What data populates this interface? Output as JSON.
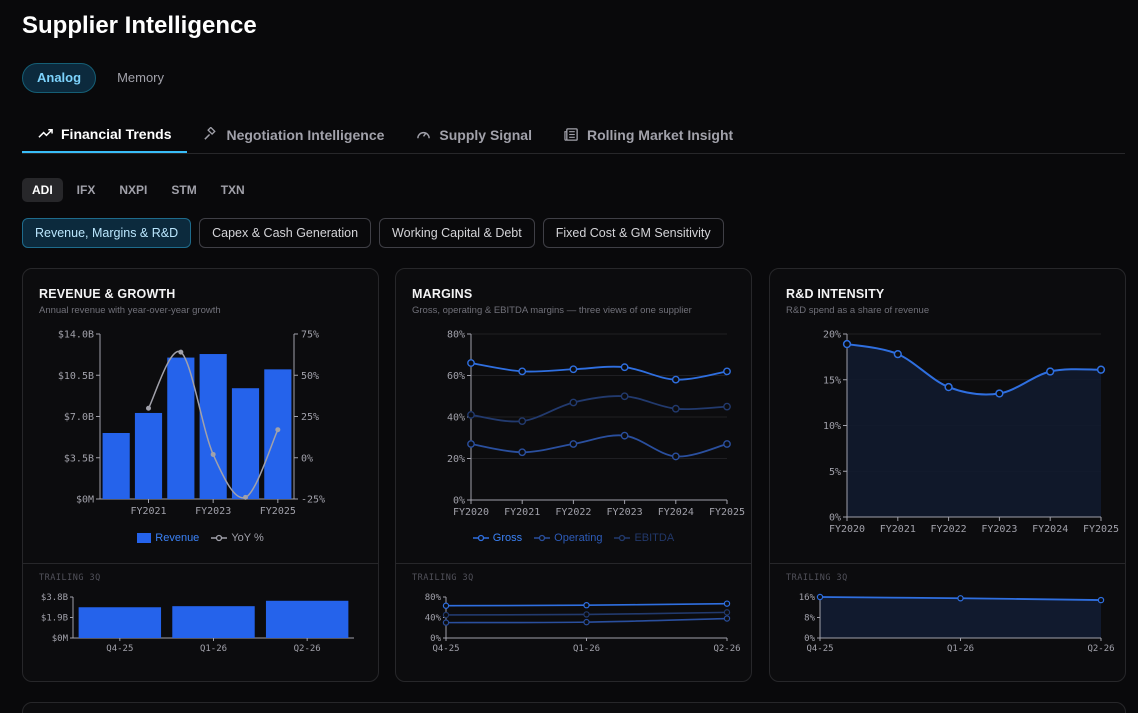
{
  "page": {
    "title": "Supplier Intelligence"
  },
  "modes": [
    {
      "label": "Analog",
      "active": true
    },
    {
      "label": "Memory",
      "active": false
    }
  ],
  "tabs": [
    {
      "label": "Financial Trends",
      "icon": "trending-up-icon",
      "active": true
    },
    {
      "label": "Negotiation Intelligence",
      "icon": "gavel-icon",
      "active": false
    },
    {
      "label": "Supply Signal",
      "icon": "gauge-icon",
      "active": false
    },
    {
      "label": "Rolling Market Insight",
      "icon": "newspaper-icon",
      "active": false
    }
  ],
  "tickers": [
    {
      "label": "ADI",
      "active": true
    },
    {
      "label": "IFX",
      "active": false
    },
    {
      "label": "NXPI",
      "active": false
    },
    {
      "label": "STM",
      "active": false
    },
    {
      "label": "TXN",
      "active": false
    }
  ],
  "views": [
    {
      "label": "Revenue, Margins & R&D",
      "active": true
    },
    {
      "label": "Capex & Cash Generation",
      "active": false
    },
    {
      "label": "Working Capital & Debt",
      "active": false
    },
    {
      "label": "Fixed Cost & GM Sensitivity",
      "active": false
    }
  ],
  "colors": {
    "accent": "#38bdf8",
    "blue": "#2563eb",
    "line": "#2f6fe0",
    "grey": "#a1a1aa"
  },
  "cards": {
    "revenue": {
      "title": "REVENUE & GROWTH",
      "subtitle": "Annual revenue with year-over-year growth",
      "trailing_label": "TRAILING 3Q",
      "legend_revenue": "Revenue",
      "legend_yoy": "YoY %"
    },
    "margins": {
      "title": "MARGINS",
      "subtitle": "Gross, operating & EBITDA margins — three views of one supplier",
      "trailing_label": "TRAILING 3Q",
      "legend_gross": "Gross",
      "legend_operating": "Operating",
      "legend_ebitda": "EBITDA"
    },
    "rd": {
      "title": "R&D INTENSITY",
      "subtitle": "R&D spend as a share of revenue",
      "trailing_label": "TRAILING 3Q"
    }
  },
  "chart_data": [
    {
      "type": "bar",
      "title": "REVENUE & GROWTH",
      "categories": [
        "FY2020",
        "FY2021",
        "FY2022",
        "FY2023",
        "FY2024",
        "FY2025"
      ],
      "x_tick_labels": [
        "FY2021",
        "FY2023",
        "FY2025"
      ],
      "series": [
        {
          "name": "Revenue",
          "values": [
            5.6,
            7.3,
            12.0,
            12.3,
            9.4,
            11.0
          ],
          "axis": "left",
          "style": "bar"
        },
        {
          "name": "YoY %",
          "values": [
            null,
            30,
            64,
            2,
            -24,
            17
          ],
          "axis": "right",
          "style": "line"
        }
      ],
      "ylim": [
        0,
        14
      ],
      "y2lim": [
        -25,
        75
      ],
      "y_ticks": [
        "$14.0B",
        "$10.5B",
        "$7.0B",
        "$3.5B",
        "$0M"
      ],
      "y2_ticks": [
        "75%",
        "50%",
        "25%",
        "0%",
        "-25%"
      ],
      "legend": "bottom-center"
    },
    {
      "type": "line",
      "title": "MARGINS",
      "x": [
        "FY2020",
        "FY2021",
        "FY2022",
        "FY2023",
        "FY2024",
        "FY2025"
      ],
      "series": [
        {
          "name": "Gross",
          "values": [
            66,
            62,
            63,
            64,
            58,
            62
          ]
        },
        {
          "name": "Operating",
          "values": [
            27,
            23,
            27,
            31,
            21,
            27
          ]
        },
        {
          "name": "EBITDA",
          "values": [
            41,
            38,
            47,
            50,
            44,
            45
          ]
        }
      ],
      "ylim": [
        0,
        80
      ],
      "y_ticks": [
        "80%",
        "60%",
        "40%",
        "20%",
        "0%"
      ],
      "legend": "bottom-center"
    },
    {
      "type": "area",
      "title": "R&D INTENSITY",
      "x": [
        "FY2020",
        "FY2021",
        "FY2022",
        "FY2023",
        "FY2024",
        "FY2025"
      ],
      "values": [
        18.9,
        17.8,
        14.2,
        13.5,
        15.9,
        16.1
      ],
      "ylim": [
        0,
        20
      ],
      "y_ticks": [
        "20%",
        "15%",
        "10%",
        "5%",
        "0%"
      ]
    },
    {
      "type": "bar",
      "title": "TRAILING 3Q",
      "categories": [
        "Q4-25",
        "Q1-26",
        "Q2-26"
      ],
      "values": [
        2.85,
        2.95,
        3.45
      ],
      "ylim": [
        0,
        3.8
      ],
      "y_ticks": [
        "$3.8B",
        "$1.9B",
        "$0M"
      ]
    },
    {
      "type": "line",
      "title": "TRAILING 3Q",
      "x": [
        "Q4-25",
        "Q1-26",
        "Q2-26"
      ],
      "series": [
        {
          "name": "Gross",
          "values": [
            63,
            64,
            67
          ]
        },
        {
          "name": "Operating",
          "values": [
            30,
            31,
            38
          ]
        },
        {
          "name": "EBITDA",
          "values": [
            45,
            46,
            50
          ]
        }
      ],
      "ylim": [
        0,
        80
      ],
      "y_ticks": [
        "80%",
        "40%",
        "0%"
      ]
    },
    {
      "type": "area",
      "title": "TRAILING 3Q",
      "x": [
        "Q4-25",
        "Q1-26",
        "Q2-26"
      ],
      "values": [
        16.0,
        15.5,
        14.8
      ],
      "ylim": [
        0,
        16
      ],
      "y_ticks": [
        "16%",
        "8%",
        "0%"
      ]
    }
  ]
}
